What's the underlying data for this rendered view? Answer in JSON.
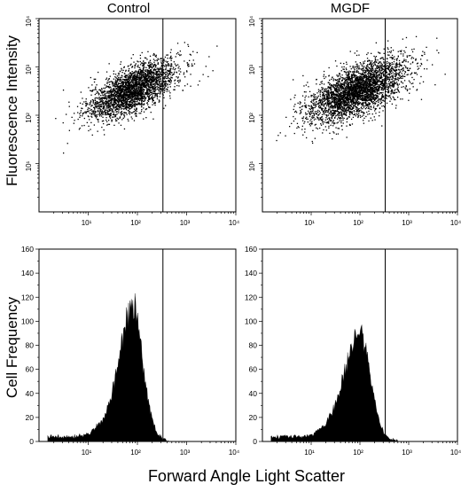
{
  "figure": {
    "y_axis_label_top": "Fluorescence Intensity",
    "y_axis_label_bottom": "Cell Frequency",
    "x_axis_label": "Forward Angle Light Scatter",
    "colors": {
      "ink": "#000000",
      "background": "#ffffff"
    }
  },
  "chart_data": [
    {
      "type": "scatter",
      "title": "Control",
      "xscale": "log",
      "yscale": "log",
      "xlim": [
        1,
        10000
      ],
      "ylim": [
        1,
        10000
      ],
      "x_ticks": [
        "10¹",
        "10²",
        "10³",
        "10⁴"
      ],
      "y_ticks": [
        "10¹",
        "10²",
        "10³",
        "10⁴"
      ],
      "gate_x": 330,
      "cluster": {
        "center": [
          80,
          350
        ],
        "spread_log_x": 0.45,
        "spread_log_y": 0.3,
        "correlation": 0.65,
        "n_points": 2800
      },
      "grid": false
    },
    {
      "type": "scatter",
      "title": "MGDF",
      "xscale": "log",
      "yscale": "log",
      "xlim": [
        1,
        10000
      ],
      "ylim": [
        1,
        10000
      ],
      "x_ticks": [
        "10¹",
        "10²",
        "10³",
        "10⁴"
      ],
      "y_ticks": [
        "10¹",
        "10²",
        "10³",
        "10⁴"
      ],
      "gate_x": 330,
      "cluster": {
        "center": [
          85,
          330
        ],
        "spread_log_x": 0.5,
        "spread_log_y": 0.32,
        "correlation": 0.6,
        "n_points": 3400
      },
      "grid": false
    },
    {
      "type": "area",
      "title": "",
      "xscale": "log",
      "xlim": [
        1,
        10000
      ],
      "ylim": [
        0,
        160
      ],
      "x_ticks": [
        "10¹",
        "10²",
        "10³",
        "10⁴"
      ],
      "y_ticks": [
        "0",
        "20",
        "40",
        "60",
        "80",
        "100",
        "120",
        "140",
        "160"
      ],
      "gate_x": 330,
      "x": [
        1.5,
        3,
        5,
        10,
        20,
        30,
        45,
        60,
        75,
        90,
        110,
        130,
        160,
        200,
        260,
        330,
        450
      ],
      "y": [
        4,
        4,
        4,
        6,
        18,
        40,
        75,
        100,
        116,
        110,
        90,
        65,
        40,
        18,
        6,
        2,
        0
      ],
      "grid": false
    },
    {
      "type": "area",
      "title": "",
      "xscale": "log",
      "xlim": [
        1,
        10000
      ],
      "ylim": [
        0,
        160
      ],
      "x_ticks": [
        "10¹",
        "10²",
        "10³",
        "10⁴"
      ],
      "y_ticks": [
        "0",
        "20",
        "40",
        "60",
        "80",
        "100",
        "120",
        "140",
        "160"
      ],
      "gate_x": 330,
      "x": [
        1.5,
        3,
        5,
        10,
        20,
        30,
        45,
        60,
        80,
        100,
        125,
        160,
        200,
        260,
        330,
        450,
        600
      ],
      "y": [
        4,
        4,
        4,
        5,
        14,
        30,
        52,
        72,
        88,
        92,
        80,
        58,
        34,
        14,
        5,
        2,
        0
      ],
      "grid": false
    }
  ]
}
